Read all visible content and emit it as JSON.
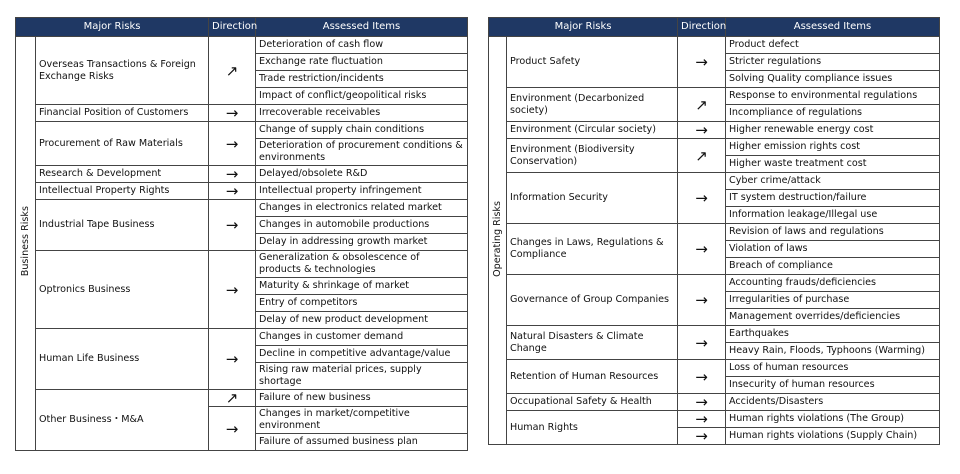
{
  "tables": [
    {
      "header": [
        "Major Risks",
        "Direction",
        "Assessed Items"
      ],
      "group": "Business Risks",
      "rows": [
        {
          "risk": "Overseas Transactions & Foreign Exchange Risks",
          "groups": [
            {
              "direction": "↗",
              "items": [
                "Deterioration of cash flow",
                "Exchange rate fluctuation",
                "Trade restriction/incidents",
                "Impact of conflict/geopolitical risks"
              ]
            }
          ]
        },
        {
          "risk": "Financial Position of Customers",
          "groups": [
            {
              "direction": "→",
              "items": [
                "Irrecoverable receivables"
              ]
            }
          ]
        },
        {
          "risk": "Procurement of Raw Materials",
          "groups": [
            {
              "direction": "→",
              "items": [
                "Change of supply chain conditions",
                "Deterioration of procurement conditions & environments"
              ]
            }
          ]
        },
        {
          "risk": "Research & Development",
          "groups": [
            {
              "direction": "→",
              "items": [
                "Delayed/obsolete R&D"
              ]
            }
          ]
        },
        {
          "risk": "Intellectual Property Rights",
          "groups": [
            {
              "direction": "→",
              "items": [
                "Intellectual property infringement"
              ]
            }
          ]
        },
        {
          "risk": "Industrial Tape Business",
          "groups": [
            {
              "direction": "→",
              "items": [
                "Changes in electronics related market",
                "Changes in automobile productions",
                "Delay in addressing growth market"
              ]
            }
          ]
        },
        {
          "risk": "Optronics Business",
          "groups": [
            {
              "direction": "→",
              "items": [
                "Generalization & obsolescence of products & technologies",
                "Maturity & shrinkage of market",
                "Entry of competitors",
                "Delay of new product development"
              ]
            }
          ]
        },
        {
          "risk": "Human Life Business",
          "groups": [
            {
              "direction": "→",
              "items": [
                "Changes in customer demand",
                "Decline in competitive advantage/value",
                "Rising raw material prices, supply shortage"
              ]
            }
          ]
        },
        {
          "risk": "Other Business・M&A",
          "groups": [
            {
              "direction": "↗",
              "items": [
                "Failure of new business"
              ]
            },
            {
              "direction": "→",
              "items": [
                "Changes in market/competitive environment",
                "Failure of assumed business plan"
              ]
            }
          ]
        }
      ]
    },
    {
      "header": [
        "Major Risks",
        "Direction",
        "Assessed Items"
      ],
      "group": "Operating Risks",
      "rows": [
        {
          "risk": "Product Safety",
          "groups": [
            {
              "direction": "→",
              "items": [
                "Product defect",
                "Stricter regulations",
                "Solving Quality compliance issues"
              ]
            }
          ]
        },
        {
          "risk": "Environment (Decarbonized society)",
          "groups": [
            {
              "direction": "↗",
              "items": [
                "Response to environmental regulations",
                "Incompliance of regulations"
              ]
            }
          ]
        },
        {
          "risk": "Environment (Circular society)",
          "groups": [
            {
              "direction": "→",
              "items": [
                "Higher renewable energy cost"
              ]
            }
          ]
        },
        {
          "risk": "Environment (Biodiversity Conservation)",
          "groups": [
            {
              "direction": "↗",
              "items": [
                "Higher emission rights cost",
                "Higher waste treatment cost"
              ]
            }
          ]
        },
        {
          "risk": "Information Security",
          "groups": [
            {
              "direction": "→",
              "items": [
                "Cyber crime/attack",
                "IT system destruction/failure",
                "Information leakage/Illegal use"
              ]
            }
          ]
        },
        {
          "risk": "Changes in Laws, Regulations & Compliance",
          "groups": [
            {
              "direction": "→",
              "items": [
                "Revision of laws and regulations",
                "Violation of laws",
                "Breach of compliance"
              ]
            }
          ]
        },
        {
          "risk": "Governance of Group Companies",
          "groups": [
            {
              "direction": "→",
              "items": [
                "Accounting frauds/deficiencies",
                "Irregularities of purchase",
                "Management overrides/deficiencies"
              ]
            }
          ]
        },
        {
          "risk": "Natural Disasters & Climate Change",
          "groups": [
            {
              "direction": "→",
              "items": [
                "Earthquakes",
                "Heavy Rain, Floods, Typhoons (Warming)"
              ]
            }
          ]
        },
        {
          "risk": "Retention of Human Resources",
          "groups": [
            {
              "direction": "→",
              "items": [
                "Loss of human resources",
                "Insecurity of human resources"
              ]
            }
          ]
        },
        {
          "risk": "Occupational Safety & Health",
          "groups": [
            {
              "direction": "→",
              "items": [
                "Accidents/Disasters"
              ]
            }
          ]
        },
        {
          "risk": "Human Rights",
          "groups": [
            {
              "direction": "→",
              "items": [
                "Human rights violations (The Group)"
              ]
            },
            {
              "direction": "→",
              "items": [
                "Human rights violations (Supply Chain)"
              ]
            }
          ]
        }
      ]
    }
  ]
}
